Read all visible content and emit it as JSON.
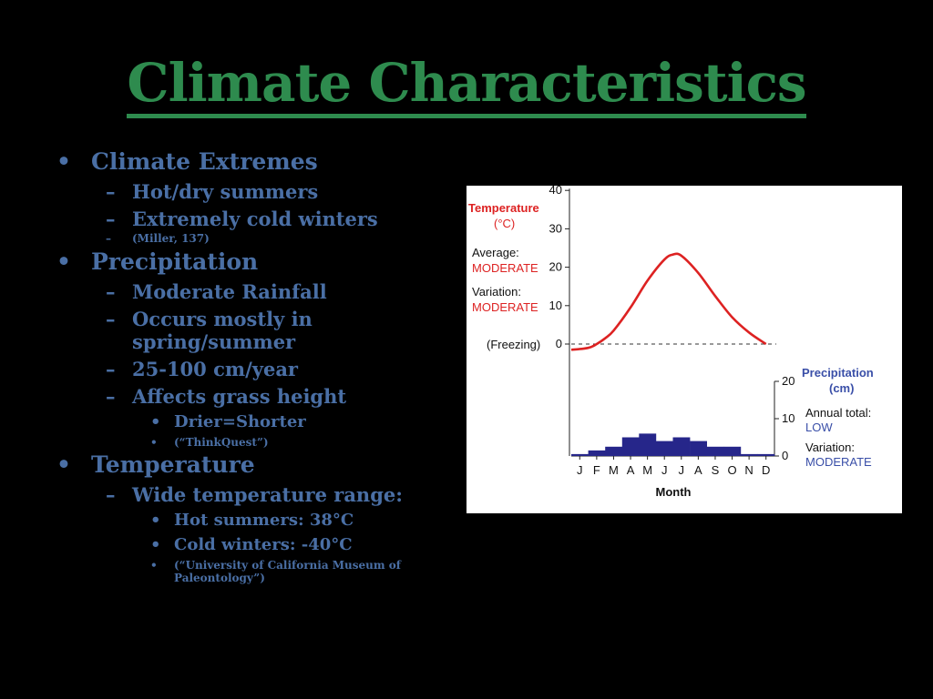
{
  "slide": {
    "title": "Climate Characteristics",
    "colors": {
      "title": "#2e8b4e",
      "text": "#4a6fa5",
      "background": "#000000"
    }
  },
  "outline": {
    "bullet_l1": "•",
    "dash": "–",
    "bullet_l3": "•",
    "climate_extremes": {
      "heading": "Climate Extremes",
      "items": [
        "Hot/dry summers",
        "Extremely cold winters"
      ],
      "citation": "(Miller, 137)"
    },
    "precipitation": {
      "heading": "Precipitation",
      "items": [
        "Moderate Rainfall",
        "Occurs mostly in spring/summer",
        "25-100 cm/year",
        "Affects grass height"
      ],
      "sub_items": [
        "Drier=Shorter"
      ],
      "citation": "(“ThinkQuest”)"
    },
    "temperature": {
      "heading": "Temperature",
      "items": [
        "Wide temperature range:"
      ],
      "sub_items": [
        "Hot summers: 38°C",
        "Cold winters: -40°C"
      ],
      "citation": "(“University of California Museum of Paleontology”)"
    }
  },
  "chart_data": {
    "type": "line",
    "months": [
      "J",
      "F",
      "M",
      "A",
      "M",
      "J",
      "J",
      "A",
      "S",
      "O",
      "N",
      "D"
    ],
    "xlabel": "Month",
    "temperature": {
      "label": "Temperature",
      "unit": "(°C)",
      "ticks": [
        0,
        10,
        20,
        30,
        40
      ],
      "ylim": [
        -3,
        40
      ],
      "x": [
        0,
        0.5,
        1,
        1.5,
        2,
        3,
        4,
        5,
        5.5,
        6,
        7,
        8,
        9,
        10,
        11
      ],
      "y": [
        -1.5,
        -1,
        0,
        1.5,
        3.5,
        9.5,
        16.5,
        22,
        23.3,
        23,
        18.5,
        12.5,
        7,
        3,
        0
      ],
      "freezing_label": "(Freezing)",
      "average_label": "Average:",
      "average_value": "MODERATE",
      "variation_label": "Variation:",
      "variation_value": "MODERATE",
      "color": "#dd2222"
    },
    "precipitation": {
      "label": "Precipitation",
      "unit": "(cm)",
      "ticks": [
        0,
        10,
        20
      ],
      "ylim": [
        0,
        20
      ],
      "values": [
        0.5,
        1.5,
        2.5,
        5,
        6,
        4,
        5,
        4,
        2.5,
        2.5,
        0.5,
        0.5
      ],
      "annual_label": "Annual total:",
      "annual_value": "LOW",
      "variation_label": "Variation:",
      "variation_value": "MODERATE",
      "color": "#26268a"
    }
  }
}
